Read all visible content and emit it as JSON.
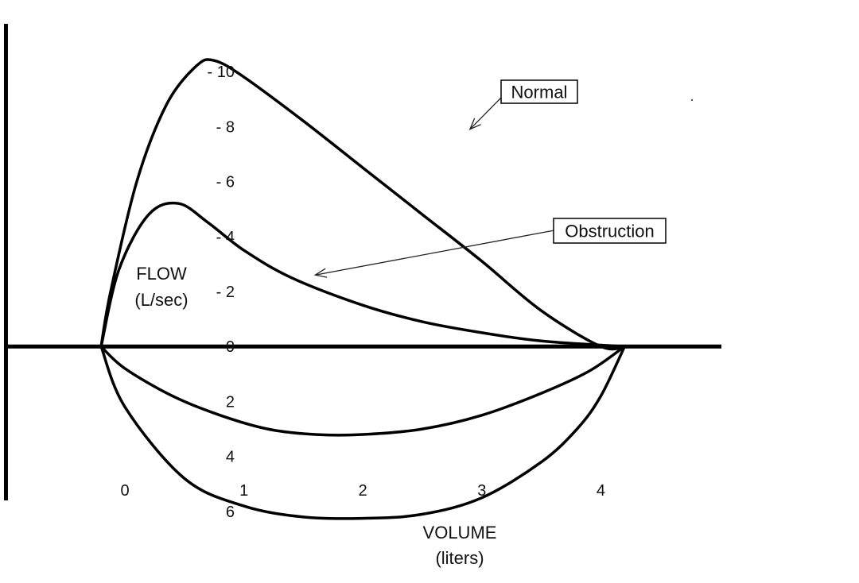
{
  "chart_data": {
    "type": "line",
    "x_axis": {
      "title_lines": [
        "VOLUME",
        "(liters)"
      ],
      "ticks": [
        0,
        1,
        2,
        3,
        4
      ],
      "tick_labels": [
        "0",
        "1",
        "2",
        "3",
        "4"
      ],
      "range": [
        -1.05,
        6.17
      ]
    },
    "y_axis": {
      "title_lines": [
        "FLOW",
        "(L/sec)"
      ],
      "inverted": true,
      "ticks": [
        -10,
        -8,
        -6,
        -4,
        -2,
        0,
        2,
        4,
        6
      ],
      "tick_labels": [
        "- 10",
        "- 8",
        "- 6",
        "- 4",
        "- 2",
        "0",
        "2",
        "4",
        "6"
      ],
      "range": [
        -12.6,
        8.6
      ]
    },
    "series": [
      {
        "name": "Normal",
        "loop": "expiratory",
        "x": [
          -0.2,
          -0.12,
          0.1,
          0.35,
          0.6,
          0.75,
          1.0,
          1.5,
          2.0,
          2.5,
          3.0,
          3.5,
          4.0,
          4.2
        ],
        "y": [
          0.0,
          -2.0,
          -6.0,
          -8.8,
          -10.2,
          -10.4,
          -9.8,
          -8.2,
          -6.5,
          -4.8,
          -3.1,
          -1.3,
          0.0,
          0.0
        ]
      },
      {
        "name": "Normal",
        "loop": "inspiratory",
        "x": [
          -0.2,
          0.0,
          0.5,
          1.0,
          1.5,
          2.0,
          2.5,
          3.0,
          3.5,
          3.8,
          4.0,
          4.2
        ],
        "y": [
          0.0,
          2.2,
          4.8,
          5.8,
          6.2,
          6.25,
          6.1,
          5.5,
          4.2,
          3.0,
          1.8,
          0.0
        ]
      },
      {
        "name": "Obstruction",
        "loop": "expiratory",
        "x": [
          -0.2,
          -0.05,
          0.2,
          0.45,
          0.7,
          1.0,
          1.4,
          2.0,
          2.5,
          3.0,
          3.5,
          4.0,
          4.2
        ],
        "y": [
          0.0,
          -2.8,
          -4.8,
          -5.2,
          -4.5,
          -3.5,
          -2.5,
          -1.5,
          -0.9,
          -0.5,
          -0.2,
          -0.05,
          0.0
        ]
      },
      {
        "name": "Obstruction",
        "loop": "inspiratory",
        "x": [
          -0.2,
          0.0,
          0.4,
          0.8,
          1.2,
          1.6,
          2.0,
          2.5,
          3.0,
          3.5,
          3.9,
          4.2
        ],
        "y": [
          0.0,
          0.8,
          1.8,
          2.5,
          3.0,
          3.2,
          3.2,
          3.0,
          2.5,
          1.7,
          0.9,
          0.0
        ]
      }
    ],
    "annotations": [
      {
        "text": "Normal",
        "points_to": {
          "x": 2.9,
          "y": -7.9
        }
      },
      {
        "text": "Obstruction",
        "points_to": {
          "x": 1.6,
          "y": -2.6
        }
      }
    ]
  }
}
